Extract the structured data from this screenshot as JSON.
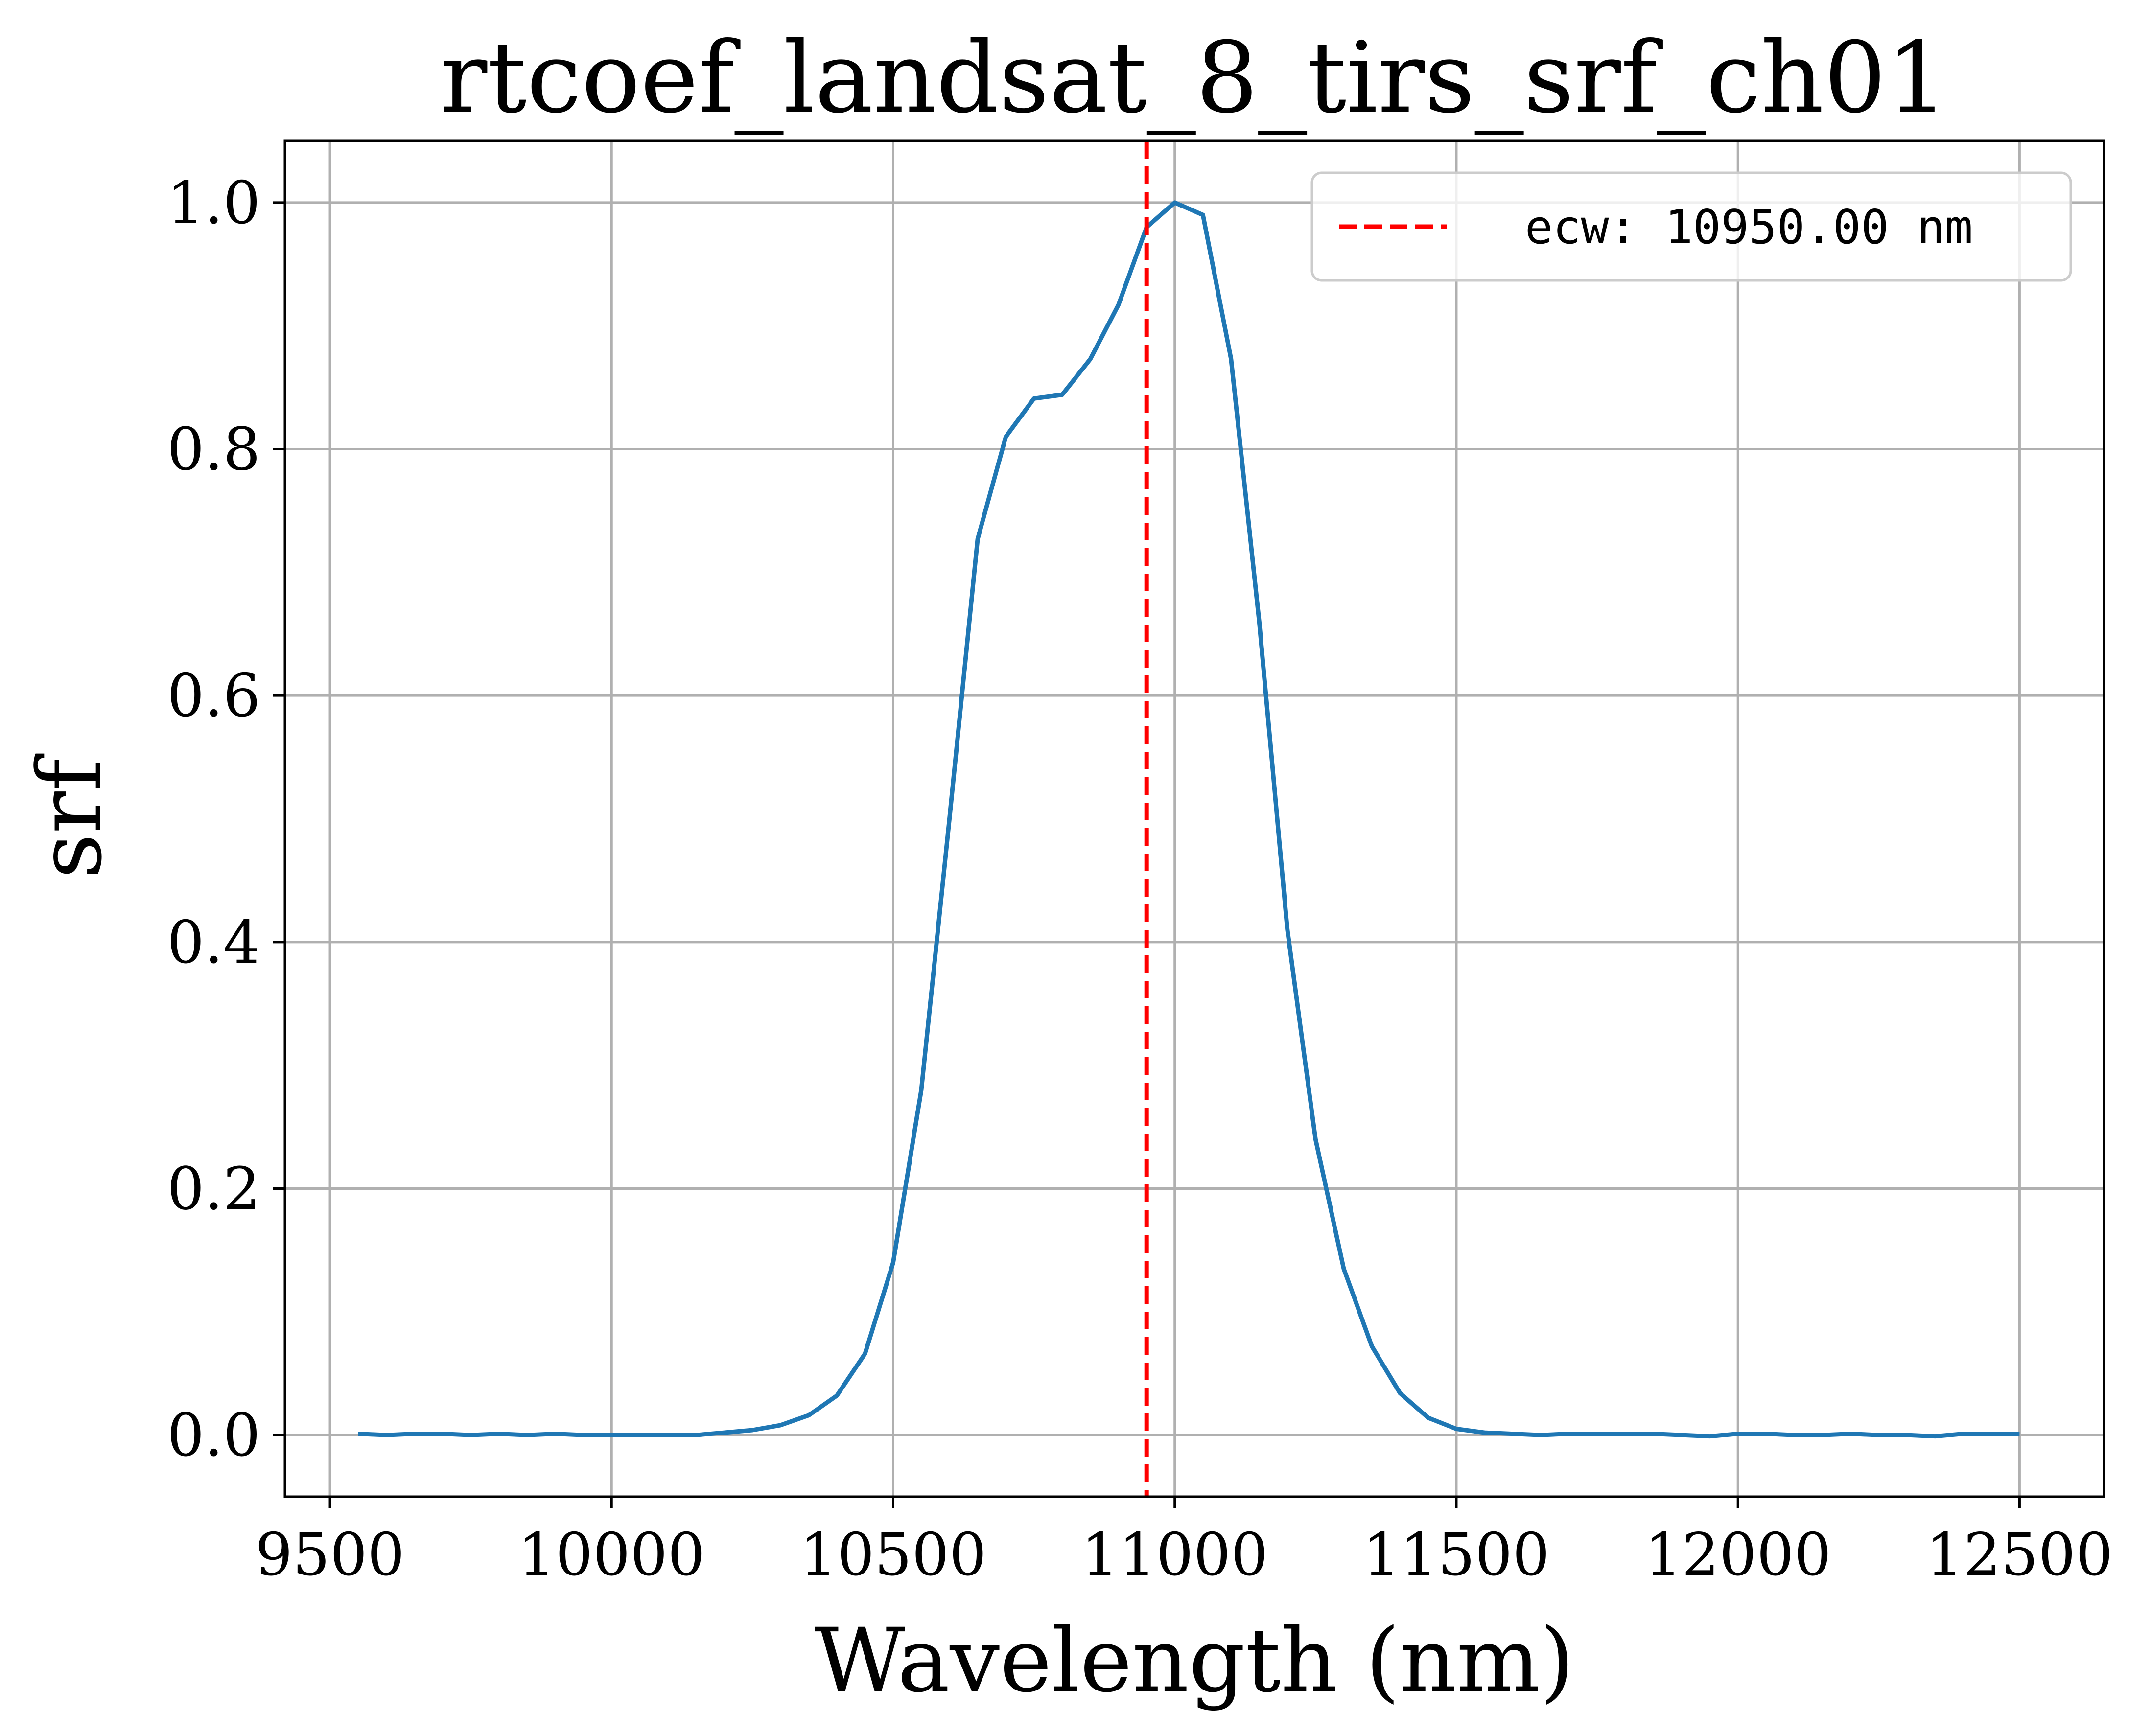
{
  "chart_data": {
    "type": "line",
    "title": "rtcoef_landsat_8_tirs_srf_ch01",
    "xlabel": "Wavelength (nm)",
    "ylabel": "srf",
    "xlim": [
      9420,
      12650
    ],
    "ylim": [
      -0.05,
      1.05
    ],
    "xticks": [
      9500,
      10000,
      10500,
      11000,
      11500,
      12000,
      12500
    ],
    "xtick_labels": [
      "9500",
      "10000",
      "10500",
      "11000",
      "11500",
      "12000",
      "12500"
    ],
    "yticks": [
      0.0,
      0.2,
      0.4,
      0.6,
      0.8,
      1.0
    ],
    "ytick_labels": [
      "0.0",
      "0.2",
      "0.4",
      "0.6",
      "0.8",
      "1.0"
    ],
    "grid": true,
    "legend_position": "top-right",
    "series": [
      {
        "color": "#1f77b4",
        "x": [
          9550,
          9600,
          9650,
          9700,
          9750,
          9800,
          9850,
          9900,
          9950,
          10000,
          10050,
          10100,
          10150,
          10200,
          10250,
          10300,
          10350,
          10400,
          10450,
          10500,
          10550,
          10600,
          10650,
          10700,
          10750,
          10800,
          10850,
          10900,
          10950,
          11000,
          11050,
          11100,
          11150,
          11200,
          11250,
          11300,
          11350,
          11400,
          11450,
          11500,
          11550,
          11600,
          11650,
          11700,
          11750,
          11800,
          11850,
          11900,
          11950,
          12000,
          12050,
          12100,
          12150,
          12200,
          12250,
          12300,
          12350,
          12400,
          12450,
          12500
        ],
        "y": [
          0.001,
          0.0,
          0.001,
          0.001,
          0.0,
          0.001,
          0.0,
          0.001,
          0.0,
          0.0,
          0.0,
          0.0,
          0.0,
          0.002,
          0.004,
          0.008,
          0.016,
          0.032,
          0.066,
          0.14,
          0.28,
          0.5,
          0.727,
          0.81,
          0.841,
          0.844,
          0.873,
          0.917,
          0.98,
          1.0,
          0.99,
          0.873,
          0.66,
          0.41,
          0.24,
          0.135,
          0.072,
          0.034,
          0.014,
          0.005,
          0.002,
          0.001,
          0.0,
          0.001,
          0.001,
          0.001,
          0.001,
          0.0,
          -0.001,
          0.001,
          0.001,
          0.0,
          0.0,
          0.001,
          0.0,
          0.0,
          -0.001,
          0.001,
          0.001,
          0.001
        ]
      }
    ],
    "reference_lines": [
      {
        "orientation": "vertical",
        "x": 10950,
        "color": "#ff0000",
        "style": "dashed",
        "label": "ecw: 10950.00 nm"
      }
    ]
  }
}
